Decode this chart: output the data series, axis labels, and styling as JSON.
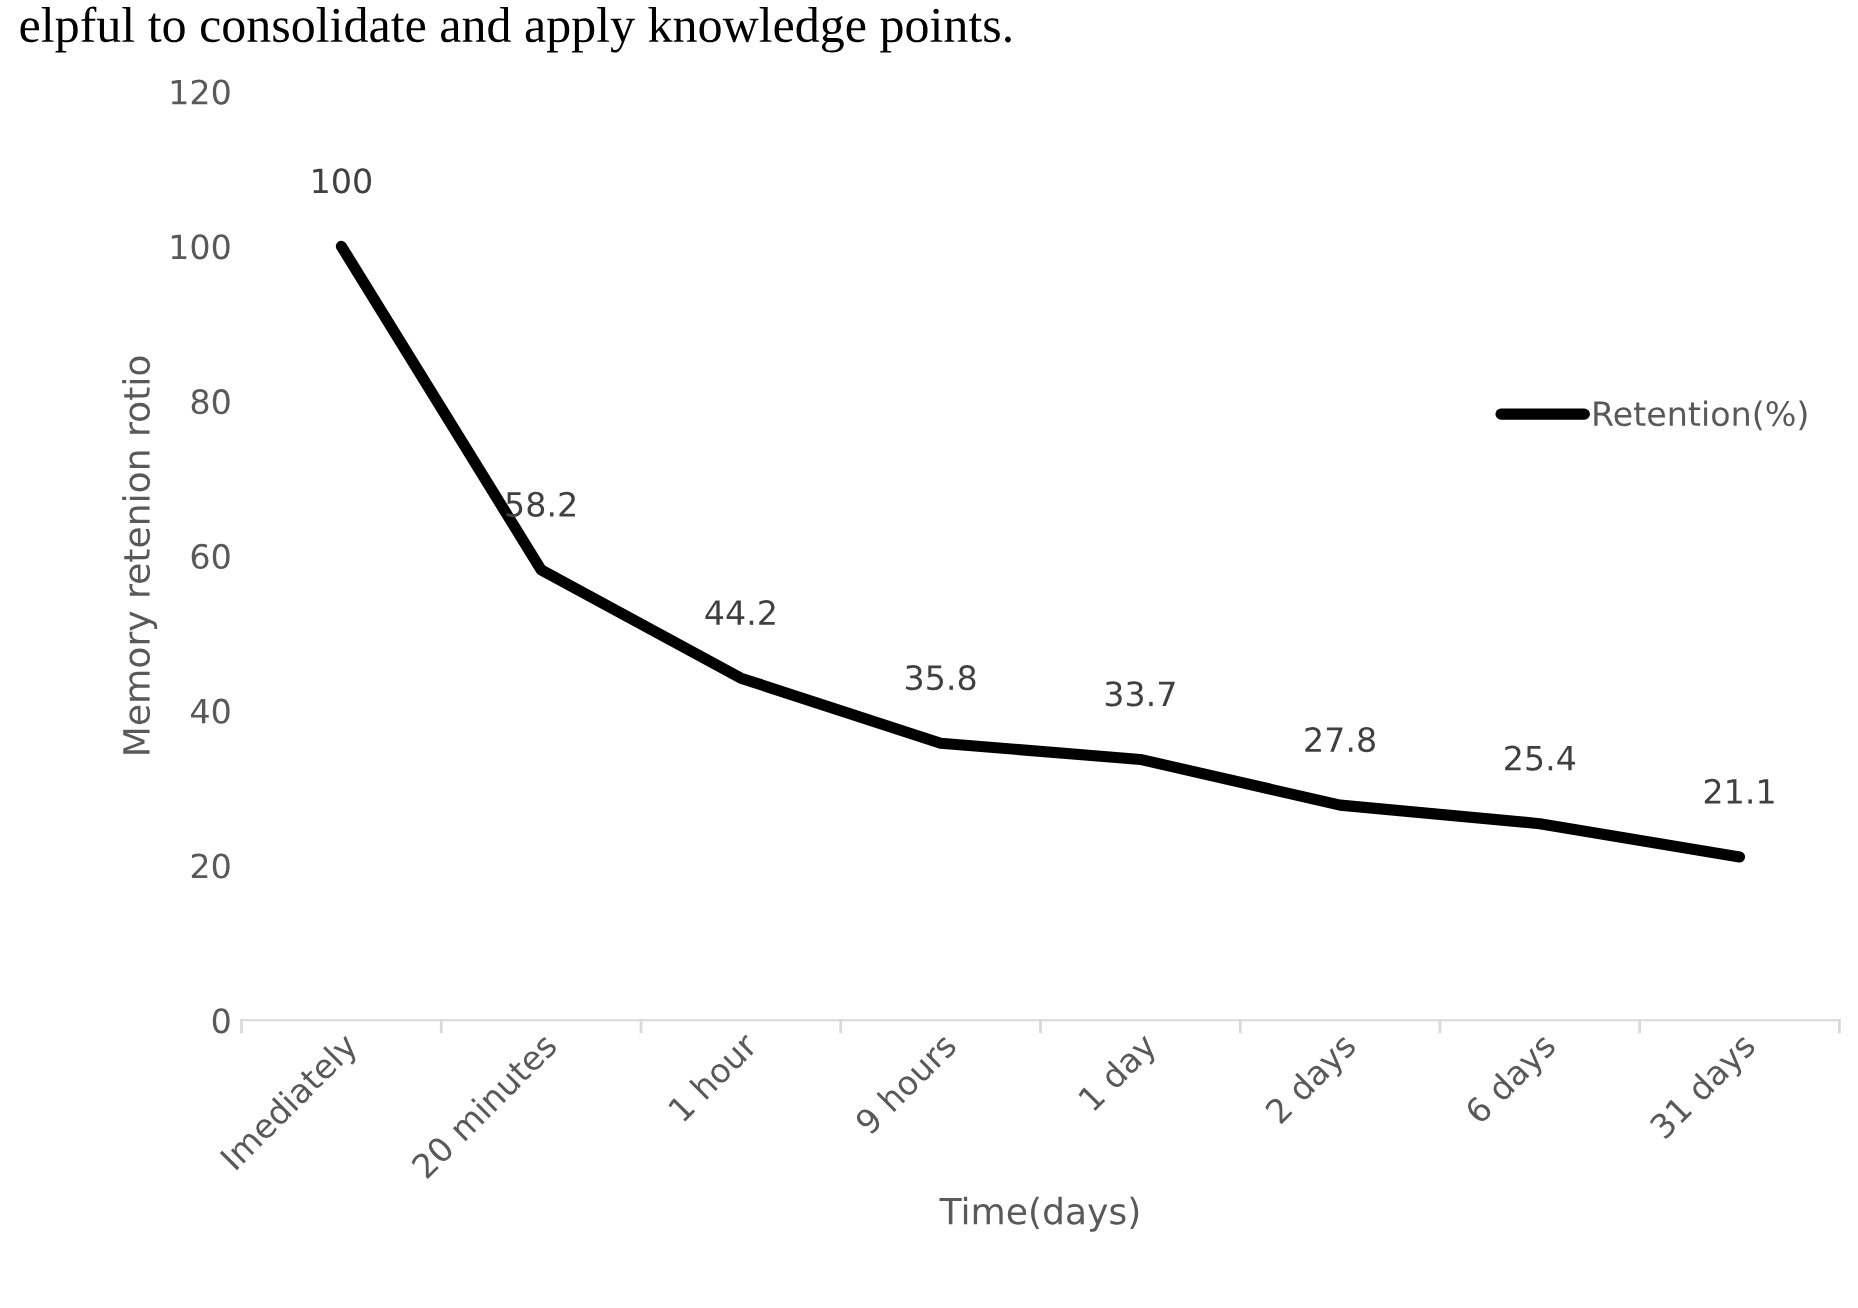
{
  "chart_data": {
    "type": "line",
    "xlabel": "Time(days)",
    "ylabel": "Memory retenion rotio",
    "categories": [
      "Imediately",
      "20 minutes",
      "1 hour",
      "9 hours",
      "1 day",
      "2 days",
      "6 days",
      "31 days"
    ],
    "series": [
      {
        "name": "Retention(%)",
        "color": "#000000",
        "values": [
          100,
          58.2,
          44.2,
          35.8,
          33.7,
          27.8,
          25.4,
          21.1
        ]
      }
    ],
    "ylim": [
      0,
      120
    ],
    "yticks": [
      0,
      20,
      40,
      60,
      80,
      100,
      120
    ],
    "grid": false,
    "legend": "right",
    "data_labels": true,
    "marker": "none",
    "line_style": "solid",
    "annotations": [
      "elpful to consolidate and apply knowledge points."
    ]
  }
}
